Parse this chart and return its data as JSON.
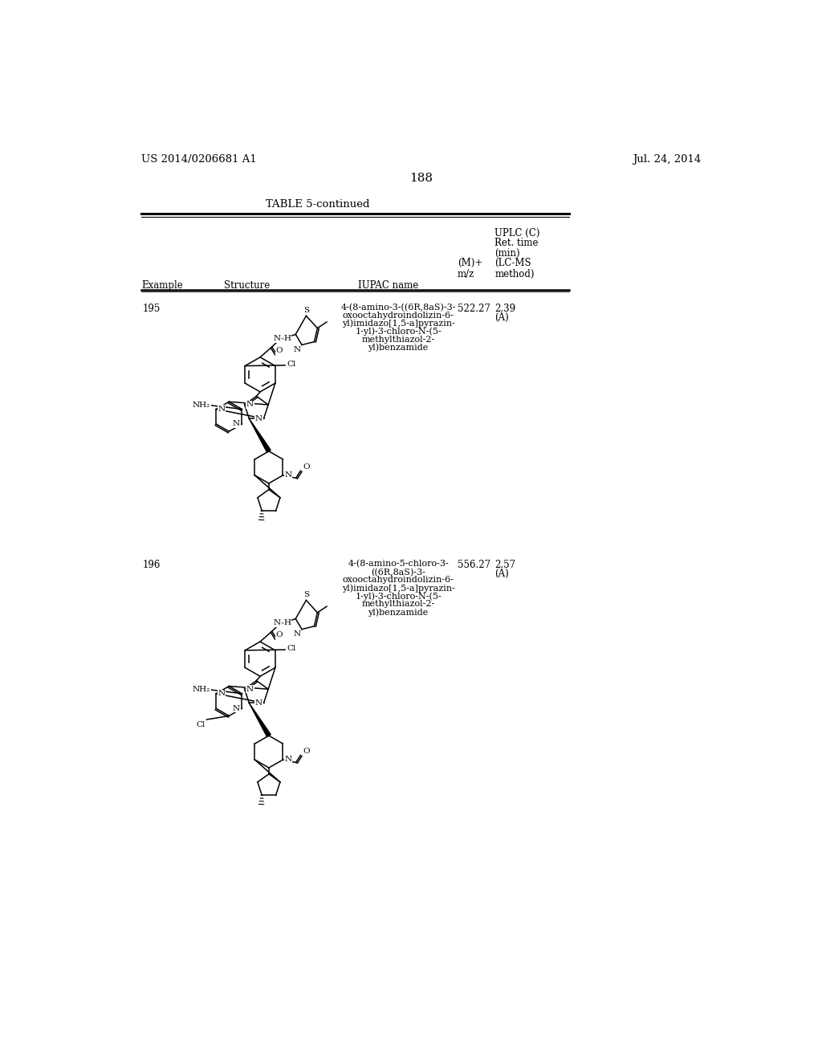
{
  "page_number": "188",
  "patent_number": "US 2014/0206681 A1",
  "patent_date": "Jul. 24, 2014",
  "table_title": "TABLE 5-continued",
  "header_col1": "Example",
  "header_col2": "Structure",
  "header_col3": "IUPAC name",
  "header_col4_line1": "(M)+",
  "header_col4_line2": "m/z",
  "header_col5_line1": "UPLC (C)",
  "header_col5_line2": "Ret. time",
  "header_col5_line3": "(min)",
  "header_col5_line4": "(LC-MS",
  "header_col5_line5": "method)",
  "row1_example": "195",
  "row1_mz": "522.27",
  "row1_ret_line1": "2.39",
  "row1_ret_line2": "(A)",
  "row1_iupac_line1": "4-(8-amino-3-((6R,8aS)-3-",
  "row1_iupac_line2": "oxooctahydroindolizin-6-",
  "row1_iupac_line3": "yl)imidazo[1,5-a]pyrazin-",
  "row1_iupac_line4": "1-yl)-3-chloro-N-(5-",
  "row1_iupac_line5": "methylthiazol-2-",
  "row1_iupac_line6": "yl)benzamide",
  "row2_example": "196",
  "row2_mz": "556.27",
  "row2_ret_line1": "2.57",
  "row2_ret_line2": "(A)",
  "row2_iupac_line1": "4-(8-amino-5-chloro-3-",
  "row2_iupac_line2": "((6R,8aS)-3-",
  "row2_iupac_line3": "oxooctahydroindolizin-6-",
  "row2_iupac_line4": "yl)imidazo[1,5-a]pyrazin-",
  "row2_iupac_line5": "1-yl)-3-chloro-N-(5-",
  "row2_iupac_line6": "methylthiazol-2-",
  "row2_iupac_line7": "yl)benzamide",
  "bg_color": "#ffffff",
  "text_color": "#000000"
}
